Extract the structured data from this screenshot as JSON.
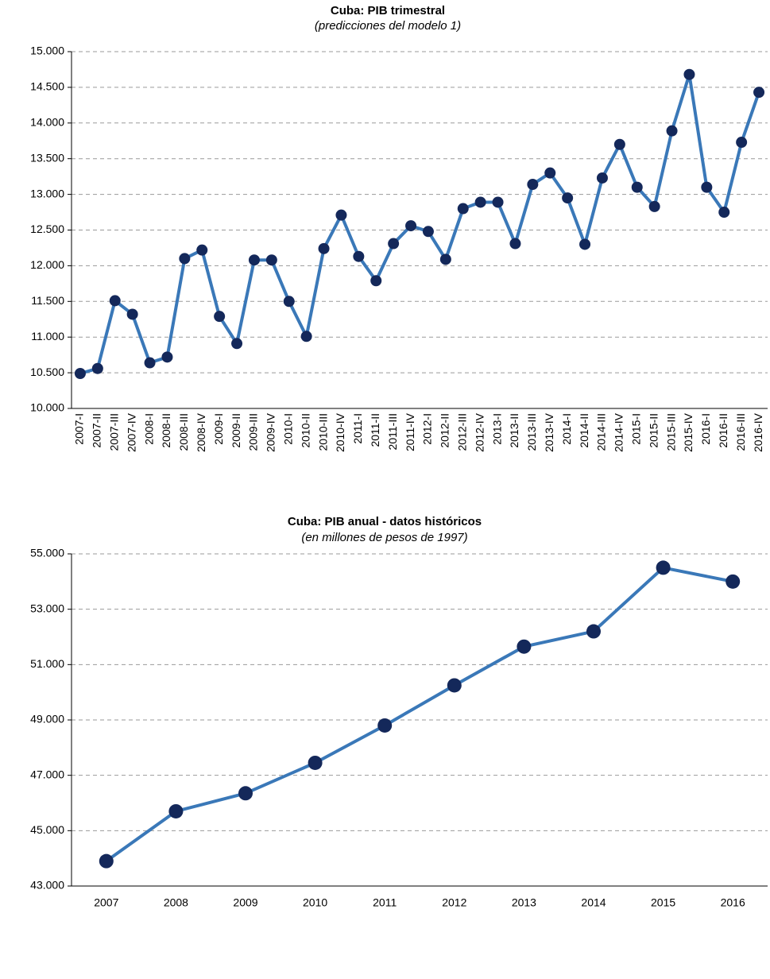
{
  "chart_data": [
    {
      "type": "line",
      "title": "Cuba: PIB trimestral",
      "subtitle": "(predicciones del modelo 1)",
      "categories": [
        "2007-I",
        "2007-II",
        "2007-III",
        "2007-IV",
        "2008-I",
        "2008-II",
        "2008-III",
        "2008-IV",
        "2009-I",
        "2009-II",
        "2009-III",
        "2009-IV",
        "2010-I",
        "2010-II",
        "2010-III",
        "2010-IV",
        "2011-I",
        "2011-II",
        "2011-III",
        "2011-IV",
        "2012-I",
        "2012-II",
        "2012-III",
        "2012-IV",
        "2013-I",
        "2013-II",
        "2013-III",
        "2013-IV",
        "2014-I",
        "2014-II",
        "2014-III",
        "2014-IV",
        "2015-I",
        "2015-II",
        "2015-III",
        "2015-IV",
        "2016-I",
        "2016-II",
        "2016-III",
        "2016-IV"
      ],
      "values": [
        10490,
        10560,
        11510,
        11320,
        10640,
        10720,
        12100,
        12220,
        11290,
        10910,
        12080,
        12080,
        11500,
        11010,
        12240,
        12710,
        12130,
        11790,
        12310,
        12560,
        12480,
        12090,
        12800,
        12890,
        12890,
        12310,
        13140,
        13300,
        12950,
        12300,
        13230,
        13700,
        13100,
        12830,
        13890,
        14680,
        13100,
        12750,
        13730,
        14430
      ],
      "color": "#3a78b8",
      "marker_color": "#14285a",
      "ylim": [
        10000,
        15000
      ],
      "yticks": [
        {
          "value": 10000,
          "label": "10.000"
        },
        {
          "value": 10500,
          "label": "10.500"
        },
        {
          "value": 11000,
          "label": "11.000"
        },
        {
          "value": 11500,
          "label": "11.500"
        },
        {
          "value": 12000,
          "label": "12.000"
        },
        {
          "value": 12500,
          "label": "12.500"
        },
        {
          "value": 13000,
          "label": "13.000"
        },
        {
          "value": 13500,
          "label": "13.500"
        },
        {
          "value": 14000,
          "label": "14.000"
        },
        {
          "value": 14500,
          "label": "14.500"
        },
        {
          "value": 15000,
          "label": "15.000"
        }
      ],
      "grid": true
    },
    {
      "type": "line",
      "title": "Cuba: PIB anual - datos históricos",
      "subtitle": "(en millones de pesos de 1997)",
      "categories": [
        "2007",
        "2008",
        "2009",
        "2010",
        "2011",
        "2012",
        "2013",
        "2014",
        "2015",
        "2016"
      ],
      "values": [
        43900,
        45700,
        46350,
        47450,
        48800,
        50250,
        51650,
        52200,
        54500,
        54000
      ],
      "color": "#3a78b8",
      "marker_color": "#14285a",
      "ylim": [
        43000,
        55000
      ],
      "yticks": [
        {
          "value": 43000,
          "label": "43.000"
        },
        {
          "value": 45000,
          "label": "45.000"
        },
        {
          "value": 47000,
          "label": "47.000"
        },
        {
          "value": 49000,
          "label": "49.000"
        },
        {
          "value": 51000,
          "label": "51.000"
        },
        {
          "value": 53000,
          "label": "53.000"
        },
        {
          "value": 55000,
          "label": "55.000"
        }
      ],
      "grid": true
    }
  ]
}
